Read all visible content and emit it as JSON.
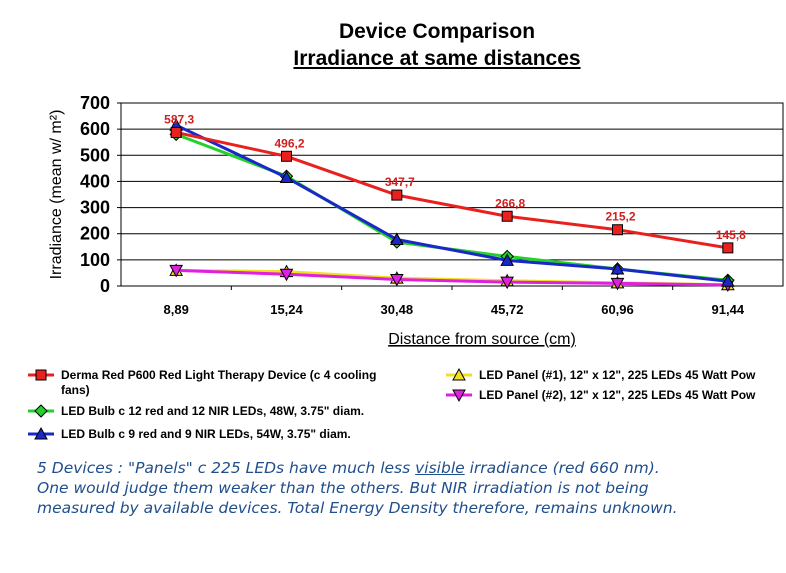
{
  "chart_data": {
    "type": "line",
    "title": "Device Comparison",
    "subtitle": "Irradiance at same distances",
    "xlabel": "Distance from source (cm)",
    "ylabel": "Irradiance (mean w/ m²)",
    "categories": [
      "8,89",
      "15,24",
      "30,48",
      "45,72",
      "60,96",
      "91,44"
    ],
    "ylim": [
      0,
      700
    ],
    "yticks": [
      0,
      100,
      200,
      300,
      400,
      500,
      600,
      700
    ],
    "grid": "horizontal",
    "legend_position": "bottom",
    "series": [
      {
        "name": "Derma Red P600 Red Light Therapy Device (c 4 cooling fans)",
        "legend_lines": [
          "Derma Red P600 Red Light Therapy Device (c 4 cooling",
          "fans)"
        ],
        "color": "#e8211f",
        "marker": "square",
        "values": [
          587.3,
          496.2,
          347.7,
          266.8,
          215.2,
          145.8
        ],
        "labels": [
          "587,3",
          "496,2",
          "347,7",
          "266,8",
          "215,2",
          "145,8"
        ]
      },
      {
        "name": "LED Bulb c 12 red and 12 NIR LEDs, 48W, 3.75\" diam.",
        "legend_lines": [
          "LED Bulb c 12 red and 12 NIR LEDs, 48W, 3.75\" diam."
        ],
        "color": "#22d22a",
        "marker": "diamond",
        "values": [
          580,
          420,
          168,
          113,
          65,
          22
        ]
      },
      {
        "name": "LED Bulb c 9 red and 9 NIR LEDs, 54W, 3.75\" diam.",
        "legend_lines": [
          "LED Bulb c 9 red and 9 NIR LEDs, 54W, 3.75\" diam."
        ],
        "color": "#1a28c8",
        "marker": "triangle-up",
        "values": [
          615,
          415,
          178,
          98,
          65,
          18
        ]
      },
      {
        "name": "LED Panel (#1), 12\" x 12\", 225 LEDs 45 Watt Pow",
        "legend_lines": [
          "LED Panel (#1), 12\" x 12\", 225 LEDs 45 Watt Pow"
        ],
        "color": "#f0e020",
        "marker": "triangle-up",
        "values": [
          60,
          55,
          30,
          20,
          12,
          5
        ]
      },
      {
        "name": "LED Panel (#2), 12\" x 12\", 225 LEDs 45 Watt Pow",
        "legend_lines": [
          "LED Panel (#2), 12\" x 12\", 225 LEDs 45 Watt Pow"
        ],
        "color": "#e020e0",
        "marker": "triangle-down",
        "values": [
          60,
          45,
          25,
          15,
          10,
          4
        ]
      }
    ]
  },
  "note": {
    "line1_a": "5 Devices : \"Panels\" c 225 LEDs have much less ",
    "line1_vis": "visible",
    "line1_b": " irradiance (red 660 nm).",
    "line2": "One would judge them weaker than the others. But NIR irradiation is not being",
    "line3": "measured by available devices. Total Energy Density therefore, remains unknown."
  }
}
